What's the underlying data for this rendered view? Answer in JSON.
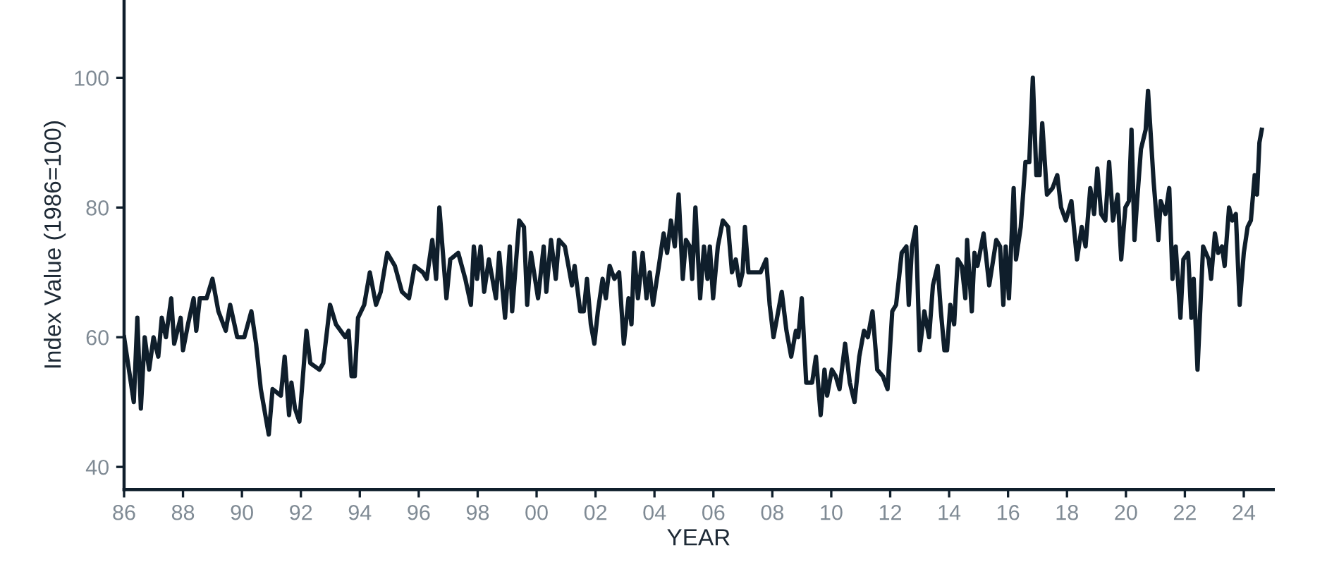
{
  "chart_data": {
    "type": "line",
    "xlabel": "YEAR",
    "ylabel": "Index Value (1986=100)",
    "x": [
      1986.0,
      1986.33,
      1986.45,
      1986.57,
      1986.7,
      1986.85,
      1987.0,
      1987.16,
      1987.28,
      1987.42,
      1987.6,
      1987.7,
      1987.92,
      1988.0,
      1988.17,
      1988.36,
      1988.45,
      1988.57,
      1988.8,
      1989.0,
      1989.2,
      1989.45,
      1989.6,
      1989.84,
      1990.08,
      1990.32,
      1990.48,
      1990.64,
      1990.91,
      1991.04,
      1991.32,
      1991.45,
      1991.6,
      1991.68,
      1991.8,
      1991.95,
      1992.19,
      1992.32,
      1992.63,
      1992.76,
      1992.99,
      1993.19,
      1993.51,
      1993.62,
      1993.72,
      1993.83,
      1993.94,
      1994.15,
      1994.34,
      1994.55,
      1994.71,
      1994.93,
      1995.19,
      1995.43,
      1995.67,
      1995.86,
      1996.14,
      1996.27,
      1996.46,
      1996.59,
      1996.7,
      1996.94,
      1997.07,
      1997.34,
      1997.58,
      1997.77,
      1997.87,
      1997.98,
      1998.1,
      1998.22,
      1998.38,
      1998.62,
      1998.73,
      1998.93,
      1999.09,
      1999.17,
      1999.41,
      1999.57,
      1999.68,
      1999.81,
      2000.05,
      2000.24,
      2000.33,
      2000.49,
      2000.65,
      2000.76,
      2000.96,
      2001.2,
      2001.29,
      2001.48,
      2001.6,
      2001.71,
      2001.84,
      2001.96,
      2002.08,
      2002.24,
      2002.35,
      2002.48,
      2002.64,
      2002.8,
      2002.96,
      2003.12,
      2003.22,
      2003.31,
      2003.44,
      2003.6,
      2003.73,
      2003.84,
      2003.95,
      2004.15,
      2004.31,
      2004.43,
      2004.56,
      2004.69,
      2004.82,
      2004.96,
      2005.07,
      2005.2,
      2005.28,
      2005.39,
      2005.55,
      2005.68,
      2005.8,
      2005.88,
      2005.99,
      2006.15,
      2006.32,
      2006.5,
      2006.63,
      2006.76,
      2006.89,
      2006.99,
      2007.07,
      2007.19,
      2007.43,
      2007.6,
      2007.79,
      2007.91,
      2008.04,
      2008.32,
      2008.48,
      2008.64,
      2008.8,
      2008.88,
      2009.0,
      2009.15,
      2009.35,
      2009.48,
      2009.64,
      2009.77,
      2009.86,
      2010.02,
      2010.15,
      2010.28,
      2010.47,
      2010.63,
      2010.79,
      2010.95,
      2011.11,
      2011.24,
      2011.4,
      2011.56,
      2011.75,
      2011.91,
      2012.07,
      2012.2,
      2012.39,
      2012.55,
      2012.63,
      2012.74,
      2012.87,
      2013.0,
      2013.16,
      2013.32,
      2013.45,
      2013.61,
      2013.72,
      2013.84,
      2013.93,
      2014.04,
      2014.17,
      2014.29,
      2014.43,
      2014.55,
      2014.61,
      2014.77,
      2014.86,
      2014.96,
      2015.17,
      2015.36,
      2015.6,
      2015.73,
      2015.84,
      2015.92,
      2016.03,
      2016.19,
      2016.27,
      2016.43,
      2016.59,
      2016.72,
      2016.84,
      2016.96,
      2017.07,
      2017.16,
      2017.32,
      2017.51,
      2017.67,
      2017.8,
      2017.96,
      2018.15,
      2018.34,
      2018.5,
      2018.63,
      2018.79,
      2018.92,
      2019.03,
      2019.16,
      2019.3,
      2019.43,
      2019.56,
      2019.72,
      2019.84,
      2019.98,
      2020.1,
      2020.19,
      2020.29,
      2020.38,
      2020.51,
      2020.67,
      2020.75,
      2020.94,
      2021.1,
      2021.18,
      2021.34,
      2021.47,
      2021.58,
      2021.69,
      2021.85,
      2021.95,
      2022.11,
      2022.22,
      2022.3,
      2022.43,
      2022.62,
      2022.81,
      2022.89,
      2023.02,
      2023.13,
      2023.26,
      2023.35,
      2023.5,
      2023.61,
      2023.73,
      2023.86,
      2024.0,
      2024.13,
      2024.24,
      2024.37,
      2024.45,
      2024.53,
      2024.61
    ],
    "series": [
      {
        "color": "#0f1e2b",
        "values": [
          60,
          50,
          63,
          49,
          60,
          55,
          60,
          57,
          63,
          60,
          66,
          59,
          63,
          58,
          62,
          66,
          61,
          66,
          66,
          69,
          64,
          61,
          65,
          60,
          60,
          64,
          59,
          52,
          45,
          52,
          51,
          57,
          48,
          53,
          49,
          47,
          61,
          56,
          55,
          56,
          65,
          62,
          60,
          61,
          54,
          54,
          63,
          65,
          70,
          65,
          67,
          73,
          71,
          67,
          66,
          71,
          70,
          69,
          75,
          69,
          80,
          66,
          72,
          73,
          69,
          65,
          74,
          69,
          74,
          67,
          72,
          66,
          73,
          63,
          74,
          64,
          78,
          77,
          65,
          73,
          66,
          74,
          67,
          75,
          69,
          75,
          74,
          68,
          71,
          64,
          64,
          69,
          62,
          59,
          64,
          69,
          66,
          71,
          69,
          70,
          59,
          66,
          62,
          73,
          66,
          73,
          66,
          70,
          65,
          71,
          76,
          73,
          78,
          74,
          82,
          69,
          75,
          74,
          69,
          80,
          66,
          74,
          69,
          74,
          66,
          74,
          78,
          77,
          70,
          72,
          68,
          70,
          77,
          70,
          70,
          70,
          72,
          65,
          60,
          67,
          61,
          57,
          61,
          60,
          66,
          53,
          53,
          57,
          48,
          55,
          51,
          55,
          54,
          52,
          59,
          53,
          50,
          57,
          61,
          60,
          64,
          55,
          54,
          52,
          64,
          65,
          73,
          74,
          65,
          74,
          77,
          58,
          64,
          60,
          68,
          71,
          64,
          58,
          58,
          65,
          62,
          72,
          71,
          66,
          75,
          64,
          73,
          71,
          76,
          68,
          75,
          74,
          65,
          74,
          66,
          83,
          72,
          77,
          87,
          87,
          100,
          85,
          85,
          93,
          82,
          83,
          85,
          80,
          78,
          81,
          72,
          77,
          74,
          83,
          79,
          86,
          79,
          78,
          87,
          78,
          82,
          72,
          80,
          81,
          92,
          75,
          81,
          89,
          92,
          98,
          84,
          75,
          81,
          79,
          83,
          69,
          74,
          63,
          72,
          73,
          63,
          69,
          55,
          74,
          72,
          69,
          76,
          73,
          74,
          71,
          80,
          78,
          79,
          65,
          73,
          77,
          78,
          85,
          82,
          90,
          92
        ]
      }
    ],
    "xlim": [
      1986,
      2025
    ],
    "ylim": [
      36.5,
      112
    ],
    "xticks": [
      {
        "value": 1986,
        "label": "86"
      },
      {
        "value": 1988,
        "label": "88"
      },
      {
        "value": 1990,
        "label": "90"
      },
      {
        "value": 1992,
        "label": "92"
      },
      {
        "value": 1994,
        "label": "94"
      },
      {
        "value": 1996,
        "label": "96"
      },
      {
        "value": 1998,
        "label": "98"
      },
      {
        "value": 2000,
        "label": "00"
      },
      {
        "value": 2002,
        "label": "02"
      },
      {
        "value": 2004,
        "label": "04"
      },
      {
        "value": 2006,
        "label": "06"
      },
      {
        "value": 2008,
        "label": "08"
      },
      {
        "value": 2010,
        "label": "10"
      },
      {
        "value": 2012,
        "label": "12"
      },
      {
        "value": 2014,
        "label": "14"
      },
      {
        "value": 2016,
        "label": "16"
      },
      {
        "value": 2018,
        "label": "18"
      },
      {
        "value": 2020,
        "label": "20"
      },
      {
        "value": 2022,
        "label": "22"
      },
      {
        "value": 2024,
        "label": "24"
      }
    ],
    "yticks": [
      40,
      60,
      80,
      100
    ],
    "grid": false,
    "legend": false,
    "marker": "none",
    "line_style": "solid"
  }
}
